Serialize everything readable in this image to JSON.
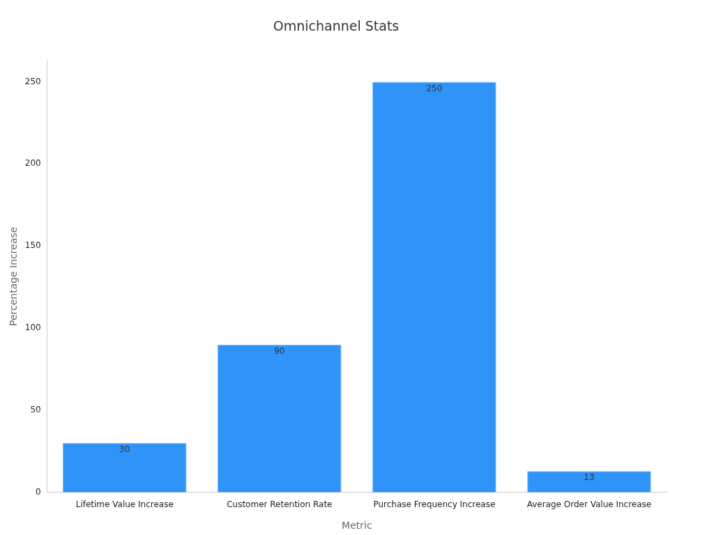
{
  "chart_data": {
    "type": "bar",
    "title": "Omnichannel Stats",
    "xlabel": "Metric",
    "ylabel": "Percentage Increase",
    "categories": [
      "Lifetime Value Increase",
      "Customer Retention Rate",
      "Purchase Frequency Increase",
      "Average Order Value Increase"
    ],
    "values": [
      30,
      90,
      250,
      13
    ],
    "color": "#2f93f8",
    "ylim": [
      0,
      263
    ],
    "yticks": [
      0,
      50,
      100,
      150,
      200,
      250
    ],
    "grid": false,
    "legend": false,
    "data_labels": true
  }
}
